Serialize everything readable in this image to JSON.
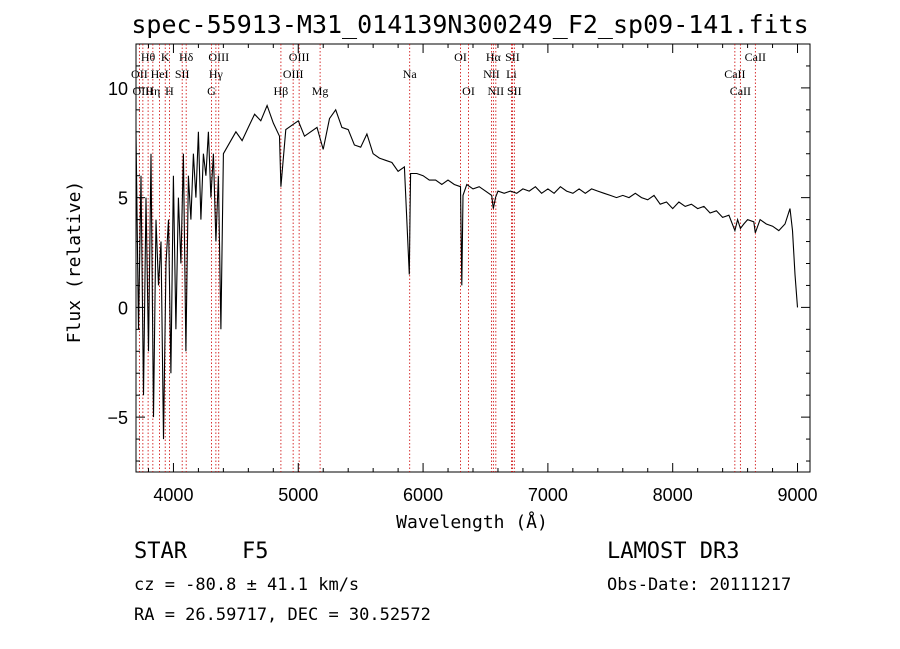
{
  "chart_data": {
    "type": "line",
    "title": "spec-55913-M31_014139N300249_F2_sp09-141.fits",
    "xlabel": "Wavelength (Å)",
    "ylabel": "Flux (relative)",
    "xlim": [
      3700,
      9100
    ],
    "ylim": [
      -7.5,
      12
    ],
    "xticks": [
      4000,
      5000,
      6000,
      7000,
      8000,
      9000
    ],
    "yticks": [
      -5,
      0,
      5,
      10
    ],
    "series": [
      {
        "name": "flux",
        "x": [
          3700,
          3720,
          3740,
          3760,
          3780,
          3800,
          3820,
          3840,
          3860,
          3880,
          3900,
          3920,
          3940,
          3960,
          3980,
          4000,
          4020,
          4040,
          4060,
          4080,
          4100,
          4120,
          4140,
          4160,
          4180,
          4200,
          4220,
          4240,
          4260,
          4280,
          4300,
          4320,
          4340,
          4360,
          4380,
          4400,
          4450,
          4500,
          4550,
          4600,
          4650,
          4700,
          4750,
          4800,
          4850,
          4861,
          4900,
          4950,
          5000,
          5050,
          5100,
          5150,
          5200,
          5250,
          5300,
          5350,
          5400,
          5450,
          5500,
          5550,
          5600,
          5650,
          5700,
          5750,
          5800,
          5850,
          5890,
          5896,
          5900,
          5950,
          6000,
          6050,
          6100,
          6150,
          6200,
          6250,
          6300,
          6310,
          6320,
          6350,
          6400,
          6450,
          6500,
          6550,
          6563,
          6580,
          6600,
          6650,
          6700,
          6750,
          6800,
          6850,
          6900,
          6950,
          7000,
          7050,
          7100,
          7150,
          7200,
          7250,
          7300,
          7350,
          7400,
          7450,
          7500,
          7550,
          7600,
          7650,
          7700,
          7750,
          7800,
          7850,
          7900,
          7950,
          8000,
          8050,
          8100,
          8150,
          8200,
          8250,
          8300,
          8350,
          8400,
          8450,
          8498,
          8520,
          8542,
          8570,
          8600,
          8650,
          8662,
          8700,
          8750,
          8800,
          8850,
          8900,
          8940,
          8960,
          8980,
          9000
        ],
        "values": [
          8,
          -1,
          6,
          -4,
          5,
          -2,
          7,
          -5,
          4,
          1,
          3,
          -6,
          2,
          4,
          -3,
          6,
          -1,
          5,
          2,
          7,
          -2,
          6,
          4,
          7,
          5,
          8,
          4,
          7,
          6,
          8,
          5,
          7,
          3,
          6,
          -1,
          7,
          7.5,
          8,
          7.6,
          8.2,
          8.8,
          8.5,
          9.2,
          8.4,
          7.8,
          5.5,
          8.1,
          8.3,
          8.5,
          7.8,
          8,
          8.2,
          7.2,
          8.6,
          9,
          8.2,
          8.1,
          7.4,
          7.3,
          7.9,
          7,
          6.8,
          6.7,
          6.6,
          6.2,
          6.4,
          1.5,
          4.5,
          6.1,
          6.1,
          6,
          5.8,
          5.8,
          5.6,
          5.8,
          5.6,
          5.5,
          1,
          5.1,
          5.6,
          5.4,
          5.5,
          5.3,
          5.1,
          4.5,
          5,
          5.3,
          5.2,
          5.3,
          5.2,
          5.4,
          5.3,
          5.5,
          5.2,
          5.4,
          5.2,
          5.5,
          5.3,
          5.2,
          5.4,
          5.2,
          5.4,
          5.3,
          5.2,
          5.1,
          5,
          5.1,
          5,
          5.2,
          5,
          4.9,
          5.1,
          4.7,
          4.8,
          4.5,
          4.8,
          4.6,
          4.7,
          4.5,
          4.6,
          4.3,
          4.4,
          4.1,
          4.2,
          3.5,
          4,
          3.6,
          3.8,
          4,
          3.9,
          3.4,
          4,
          3.8,
          3.7,
          3.5,
          3.8,
          4.5,
          3.5,
          1.5,
          0
        ]
      }
    ],
    "spectral_lines": [
      {
        "label": "Hθ",
        "x": 3797,
        "row": 1
      },
      {
        "label": "OII",
        "x": 3727,
        "row": 2
      },
      {
        "label": "OIII",
        "x": 3755,
        "row": 3
      },
      {
        "label": "K",
        "x": 3934,
        "row": 1
      },
      {
        "label": "HeI",
        "x": 3889,
        "row": 2
      },
      {
        "label": "Hη",
        "x": 3835,
        "row": 3
      },
      {
        "label": "Hδ",
        "x": 4102,
        "row": 1
      },
      {
        "label": "SII",
        "x": 4070,
        "row": 2
      },
      {
        "label": "H",
        "x": 3968,
        "row": 3
      },
      {
        "label": "OIII",
        "x": 4363,
        "row": 1
      },
      {
        "label": "Hγ",
        "x": 4340,
        "row": 2
      },
      {
        "label": "G",
        "x": 4305,
        "row": 3
      },
      {
        "label": "OIII",
        "x": 5007,
        "row": 1
      },
      {
        "label": "OIII",
        "x": 4959,
        "row": 2
      },
      {
        "label": "Hβ",
        "x": 4861,
        "row": 3
      },
      {
        "label": "Mg",
        "x": 5175,
        "row": 3
      },
      {
        "label": "Na",
        "x": 5893,
        "row": 2
      },
      {
        "label": "OI",
        "x": 6300,
        "row": 1
      },
      {
        "label": "OI",
        "x": 6364,
        "row": 3
      },
      {
        "label": "Hα",
        "x": 6563,
        "row": 1
      },
      {
        "label": "SII",
        "x": 6716,
        "row": 1
      },
      {
        "label": "NII",
        "x": 6548,
        "row": 2
      },
      {
        "label": "Li",
        "x": 6708,
        "row": 2
      },
      {
        "label": "NII",
        "x": 6583,
        "row": 3
      },
      {
        "label": "SII",
        "x": 6731,
        "row": 3
      },
      {
        "label": "CaII",
        "x": 8662,
        "row": 1
      },
      {
        "label": "CaII",
        "x": 8498,
        "row": 2
      },
      {
        "label": "CaII",
        "x": 8542,
        "row": 3
      }
    ]
  },
  "info": {
    "class_label": "STAR",
    "subclass": "F5",
    "survey": "LAMOST DR3",
    "cz": "cz = -80.8 ± 41.1 km/s",
    "obs_date": "Obs-Date: 20111217",
    "coords": "RA =  26.59717, DEC =  30.52572"
  },
  "colors": {
    "line": "#000000",
    "marker_line": "#cc0000",
    "text": "#000000"
  }
}
